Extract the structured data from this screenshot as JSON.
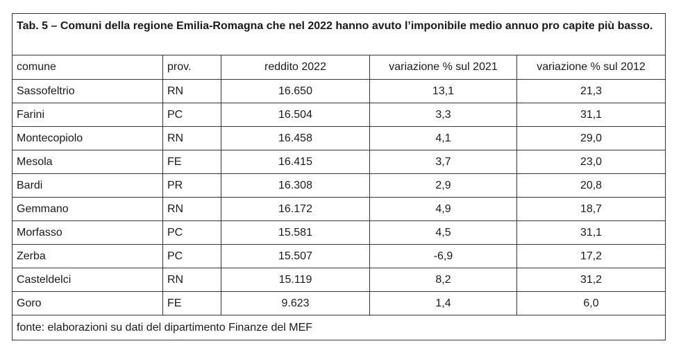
{
  "table": {
    "title": "Tab. 5 – Comuni della regione Emilia-Romagna che nel 2022 hanno avuto l’imponibile medio annuo pro capite più basso.",
    "headers": [
      "comune",
      "prov.",
      "reddito 2022",
      "variazione % sul 2021",
      "variazione % sul 2012"
    ],
    "rows": [
      [
        "Sassofeltrio",
        "RN",
        "16.650",
        "13,1",
        "21,3"
      ],
      [
        "Farini",
        "PC",
        "16.504",
        "3,3",
        "31,1"
      ],
      [
        "Montecopiolo",
        "RN",
        "16.458",
        "4,1",
        "29,0"
      ],
      [
        "Mesola",
        "FE",
        "16.415",
        "3,7",
        "23,0"
      ],
      [
        "Bardi",
        "PR",
        "16.308",
        "2,9",
        "20,8"
      ],
      [
        "Gemmano",
        "RN",
        "16.172",
        "4,9",
        "18,7"
      ],
      [
        "Morfasso",
        "PC",
        "15.581",
        "4,5",
        "31,1"
      ],
      [
        "Zerba",
        "PC",
        "15.507",
        "-6,9",
        "17,2"
      ],
      [
        "Casteldelci",
        "RN",
        "15.119",
        "8,2",
        "31,2"
      ],
      [
        "Goro",
        "FE",
        "9.623",
        "1,4",
        "6,0"
      ]
    ],
    "footer": "fonte: elaborazioni su dati del dipartimento Finanze del MEF"
  }
}
